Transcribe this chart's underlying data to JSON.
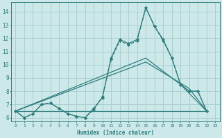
{
  "xlabel": "Humidex (Indice chaleur)",
  "background_color": "#cce8e8",
  "grid_color": "#aacfcf",
  "line_color": "#2d7d7d",
  "xlim": [
    -0.5,
    23.5
  ],
  "ylim": [
    5.7,
    14.7
  ],
  "yticks": [
    6,
    7,
    8,
    9,
    10,
    11,
    12,
    13,
    14
  ],
  "xticks": [
    0,
    1,
    2,
    3,
    4,
    5,
    6,
    7,
    8,
    9,
    10,
    11,
    12,
    13,
    14,
    15,
    16,
    17,
    18,
    19,
    20,
    21,
    22,
    23
  ],
  "lines": [
    {
      "x": [
        0,
        1,
        2,
        3,
        4,
        5,
        6,
        7,
        8,
        9,
        10,
        11,
        12,
        13,
        14,
        15,
        16,
        17,
        18,
        19,
        20,
        21,
        22
      ],
      "y": [
        6.5,
        6.0,
        6.3,
        7.0,
        7.1,
        6.7,
        6.3,
        6.1,
        6.0,
        6.6,
        7.6,
        10.4,
        11.8,
        11.5,
        11.8,
        14.3,
        12.9,
        11.8,
        10.5,
        8.5,
        8.0,
        8.0,
        6.5
      ],
      "style": "--",
      "marker": "D",
      "markersize": 2.0,
      "linewidth": 0.9
    },
    {
      "x": [
        0,
        1,
        2,
        3,
        4,
        5,
        6,
        7,
        8,
        9,
        10,
        11,
        12,
        13,
        14,
        15,
        16,
        17,
        18,
        19,
        20,
        21,
        22
      ],
      "y": [
        6.5,
        6.0,
        6.3,
        7.0,
        7.1,
        6.7,
        6.3,
        6.1,
        6.0,
        6.7,
        7.5,
        10.5,
        11.9,
        11.6,
        11.9,
        14.3,
        12.9,
        11.9,
        10.5,
        8.5,
        8.0,
        8.0,
        6.5
      ],
      "style": "-",
      "marker": "D",
      "markersize": 2.0,
      "linewidth": 0.9
    },
    {
      "x": [
        0,
        15,
        19,
        22
      ],
      "y": [
        6.5,
        10.5,
        8.5,
        6.5
      ],
      "style": "-",
      "marker": null,
      "markersize": 0,
      "linewidth": 0.9
    },
    {
      "x": [
        0,
        15,
        20,
        22
      ],
      "y": [
        6.5,
        10.2,
        8.2,
        6.5
      ],
      "style": "-",
      "marker": null,
      "markersize": 0,
      "linewidth": 0.9
    },
    {
      "x": [
        0,
        22
      ],
      "y": [
        6.5,
        6.5
      ],
      "style": "-",
      "marker": null,
      "markersize": 0,
      "linewidth": 0.9
    }
  ]
}
